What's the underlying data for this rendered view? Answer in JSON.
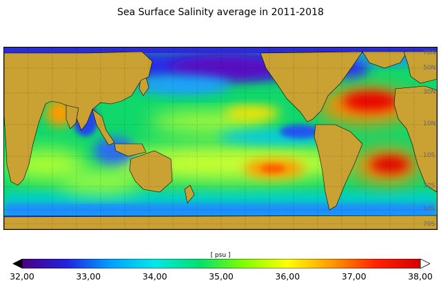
{
  "title": "Sea Surface Salinity average in 2011-2018",
  "map": {
    "ocean_variable": "Sea Surface Salinity",
    "land_color": "#c9a233",
    "grid": true,
    "lat_labels": [
      "70N",
      "50N",
      "30N",
      "10N",
      "10S",
      "30S",
      "50S",
      "70S"
    ]
  },
  "colorbar": {
    "unit": "[ psu ]",
    "min": 32.0,
    "max": 38.0,
    "extend": "both",
    "tick_labels": [
      "32,00",
      "33,00",
      "34,00",
      "35,00",
      "36,00",
      "37,00",
      "38,00"
    ],
    "colors": [
      "#000000",
      "#4b0082",
      "#2222dd",
      "#00a0ff",
      "#00e8e8",
      "#00e070",
      "#7fff00",
      "#ffff00",
      "#ff9900",
      "#ff2200",
      "#d60000",
      "#ffffff"
    ]
  }
}
